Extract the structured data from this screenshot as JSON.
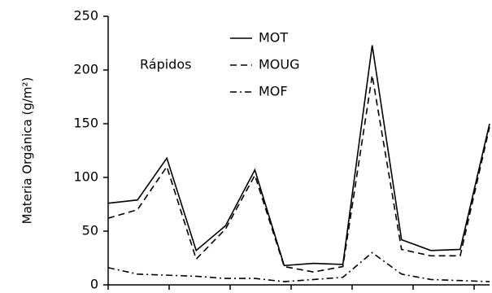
{
  "chart_data": {
    "type": "line",
    "ylabel": "Materia Orgánica (g/m²)",
    "legend_title": "Rápidos",
    "categories": [
      null,
      null,
      null,
      null,
      null,
      null,
      null,
      null,
      null,
      null,
      null,
      null,
      null,
      null
    ],
    "series": [
      {
        "name": "MOT",
        "color": "#000000",
        "style": "solid",
        "values": [
          76,
          79,
          118,
          32,
          55,
          107,
          18,
          20,
          19,
          223,
          42,
          32,
          33,
          150
        ]
      },
      {
        "name": "MOUG",
        "color": "#000000",
        "style": "dashed",
        "values": [
          62,
          70,
          110,
          24,
          52,
          102,
          17,
          12,
          17,
          195,
          33,
          27,
          27,
          147
        ]
      },
      {
        "name": "MOF",
        "color": "#000000",
        "style": "dashdot",
        "values": [
          16,
          10,
          9,
          8,
          6,
          6,
          3,
          5,
          7,
          30,
          10,
          5,
          4,
          3
        ]
      }
    ],
    "ylim": [
      0,
      250
    ],
    "yticks": [
      0,
      50,
      100,
      150,
      200,
      250
    ],
    "grid": false
  }
}
